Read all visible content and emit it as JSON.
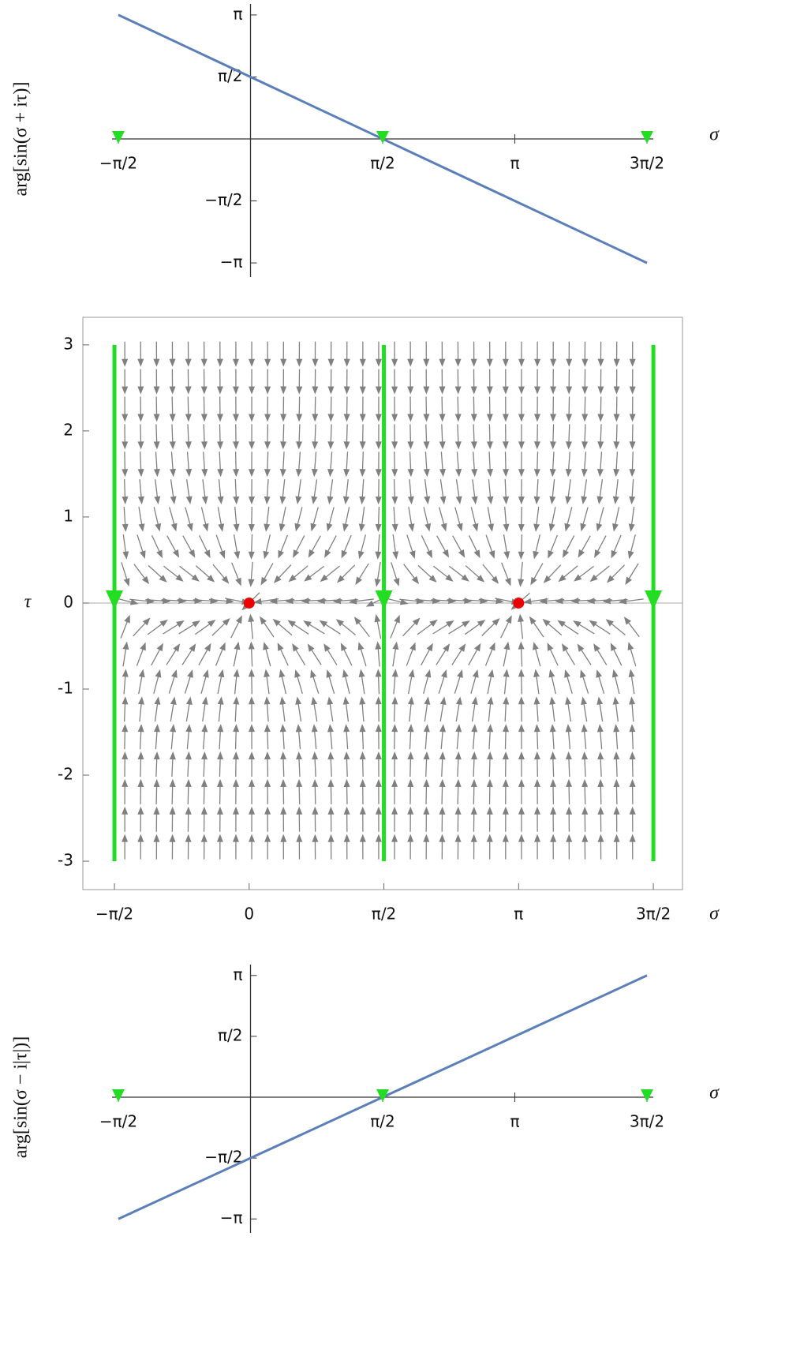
{
  "chart_data": [
    {
      "type": "line",
      "axes": "origin",
      "x_label": "σ",
      "y_label": "arg[sin(σ + iτ)]",
      "xlim": [
        -1.5708,
        4.7124
      ],
      "ylim": [
        -3.3,
        3.3
      ],
      "xticks": [
        {
          "value": -1.5708,
          "label": "−π/2"
        },
        {
          "value": 1.5708,
          "label": "π/2"
        },
        {
          "value": 3.1416,
          "label": "π"
        },
        {
          "value": 4.7124,
          "label": "3π/2"
        }
      ],
      "yticks": [
        {
          "value": -3.1416,
          "label": "−π"
        },
        {
          "value": -1.5708,
          "label": "−π/2"
        },
        {
          "value": 1.5708,
          "label": "π/2"
        },
        {
          "value": 3.1416,
          "label": "π"
        }
      ],
      "x": [
        -1.5708,
        4.7124
      ],
      "values": [
        3.1416,
        -3.1416
      ],
      "color": "#5b7fb8",
      "markers": {
        "x": [
          -1.5708,
          1.5708,
          4.7124
        ],
        "values": [
          0,
          0,
          0
        ],
        "color": "#22dd22"
      }
    },
    {
      "type": "stream",
      "axes": "frame",
      "x_label": "σ",
      "y_label": "τ",
      "xlim": [
        -1.939,
        5.052
      ],
      "ylim": [
        -3.33,
        3.32
      ],
      "xticks": [
        {
          "value": -1.5708,
          "label": "−π/2"
        },
        0,
        {
          "value": 1.5708,
          "label": "π/2"
        },
        {
          "value": 3.1416,
          "label": "π"
        },
        {
          "value": 4.7124,
          "label": "3π/2"
        }
      ],
      "yticks": [
        -3,
        -2,
        -1,
        0,
        1,
        2,
        3
      ],
      "field_color": "#808080",
      "lines": [
        {
          "x": [
            -1.5708,
            -1.5708
          ],
          "values": [
            3,
            -3
          ]
        },
        {
          "x": [
            1.5708,
            1.5708
          ],
          "values": [
            3,
            -3
          ]
        },
        {
          "x": [
            4.7124,
            4.7124
          ],
          "values": [
            3,
            -3
          ]
        }
      ],
      "line_color": "#22dd22",
      "points": {
        "x": [
          0,
          3.1416
        ],
        "values": [
          0,
          0
        ],
        "color": "#ee0000"
      }
    },
    {
      "type": "line",
      "axes": "origin",
      "x_label": "σ",
      "y_label": "arg[sin(σ − i|τ|)]",
      "xlim": [
        -1.5708,
        4.7124
      ],
      "ylim": [
        -3.3,
        3.3
      ],
      "xticks": [
        {
          "value": -1.5708,
          "label": "−π/2"
        },
        {
          "value": 1.5708,
          "label": "π/2"
        },
        {
          "value": 3.1416,
          "label": "π"
        },
        {
          "value": 4.7124,
          "label": "3π/2"
        }
      ],
      "yticks": [
        {
          "value": -3.1416,
          "label": "−π"
        },
        {
          "value": -1.5708,
          "label": "−π/2"
        },
        {
          "value": 1.5708,
          "label": "π/2"
        },
        {
          "value": 3.1416,
          "label": "π"
        }
      ],
      "x": [
        -1.5708,
        4.7124
      ],
      "values": [
        -3.1416,
        3.1416
      ],
      "color": "#5b7fb8",
      "markers": {
        "x": [
          -1.5708,
          1.5708,
          4.7124
        ],
        "values": [
          0,
          0,
          0
        ],
        "color": "#22dd22"
      }
    }
  ]
}
